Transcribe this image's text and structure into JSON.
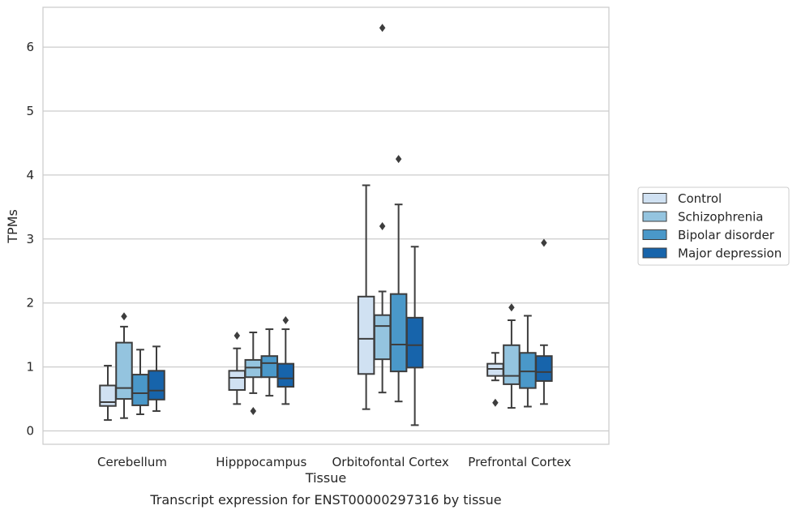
{
  "chart_data": {
    "type": "boxplot",
    "title": "Transcript expression for ENST00000297316 by tissue",
    "xlabel": "Tissue",
    "ylabel": "TPMs",
    "ylim": [
      -0.2,
      6.6
    ],
    "yticks": [
      0,
      1,
      2,
      3,
      4,
      5,
      6
    ],
    "grid": true,
    "legend_placement": "center-right, outside plot",
    "categories": [
      "Cerebellum",
      "Hipppocampus",
      "Orbitofontal Cortex",
      "Prefrontal Cortex"
    ],
    "series": [
      {
        "name": "Control",
        "color": "#d0e1f2",
        "boxes": [
          {
            "whisker_low": 0.17,
            "q1": 0.39,
            "median": 0.45,
            "q3": 0.71,
            "whisker_high": 1.02,
            "outliers": []
          },
          {
            "whisker_low": 0.42,
            "q1": 0.64,
            "median": 0.83,
            "q3": 0.94,
            "whisker_high": 1.29,
            "outliers": [
              1.49
            ]
          },
          {
            "whisker_low": 0.34,
            "q1": 0.89,
            "median": 1.44,
            "q3": 2.1,
            "whisker_high": 3.84,
            "outliers": []
          },
          {
            "whisker_low": 0.79,
            "q1": 0.86,
            "median": 0.97,
            "q3": 1.05,
            "whisker_high": 1.22,
            "outliers": [
              0.44
            ]
          }
        ]
      },
      {
        "name": "Schizophrenia",
        "color": "#94c4df",
        "boxes": [
          {
            "whisker_low": 0.2,
            "q1": 0.5,
            "median": 0.67,
            "q3": 1.38,
            "whisker_high": 1.63,
            "outliers": [
              1.79
            ]
          },
          {
            "whisker_low": 0.59,
            "q1": 0.84,
            "median": 0.99,
            "q3": 1.11,
            "whisker_high": 1.54,
            "outliers": [
              0.31
            ]
          },
          {
            "whisker_low": 0.6,
            "q1": 1.12,
            "median": 1.64,
            "q3": 1.81,
            "whisker_high": 2.18,
            "outliers": [
              3.2,
              6.3
            ]
          },
          {
            "whisker_low": 0.36,
            "q1": 0.73,
            "median": 0.86,
            "q3": 1.34,
            "whisker_high": 1.73,
            "outliers": [
              1.93
            ]
          }
        ]
      },
      {
        "name": "Bipolar disorder",
        "color": "#4a98c9",
        "boxes": [
          {
            "whisker_low": 0.26,
            "q1": 0.4,
            "median": 0.59,
            "q3": 0.88,
            "whisker_high": 1.27,
            "outliers": []
          },
          {
            "whisker_low": 0.55,
            "q1": 0.84,
            "median": 1.06,
            "q3": 1.17,
            "whisker_high": 1.59,
            "outliers": []
          },
          {
            "whisker_low": 0.46,
            "q1": 0.93,
            "median": 1.35,
            "q3": 2.14,
            "whisker_high": 3.54,
            "outliers": [
              4.25
            ]
          },
          {
            "whisker_low": 0.38,
            "q1": 0.67,
            "median": 0.93,
            "q3": 1.22,
            "whisker_high": 1.8,
            "outliers": []
          }
        ]
      },
      {
        "name": "Major depression",
        "color": "#1764ab",
        "boxes": [
          {
            "whisker_low": 0.31,
            "q1": 0.49,
            "median": 0.63,
            "q3": 0.94,
            "whisker_high": 1.32,
            "outliers": []
          },
          {
            "whisker_low": 0.42,
            "q1": 0.69,
            "median": 0.82,
            "q3": 1.05,
            "whisker_high": 1.59,
            "outliers": [
              1.73
            ]
          },
          {
            "whisker_low": 0.09,
            "q1": 0.99,
            "median": 1.34,
            "q3": 1.77,
            "whisker_high": 2.88,
            "outliers": []
          },
          {
            "whisker_low": 0.42,
            "q1": 0.78,
            "median": 0.92,
            "q3": 1.17,
            "whisker_high": 1.34,
            "outliers": [
              2.94
            ]
          }
        ]
      }
    ]
  }
}
